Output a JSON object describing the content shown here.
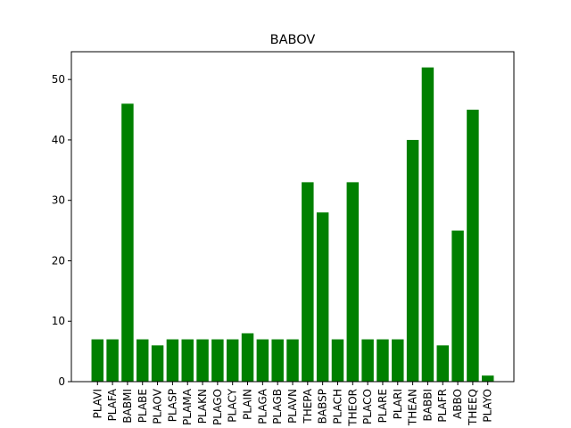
{
  "chart_data": {
    "type": "bar",
    "title": "BABOV",
    "xlabel": "",
    "ylabel": "",
    "categories": [
      "PLAVI",
      "PLAFA",
      "BABMI",
      "PLABE",
      "PLAOV",
      "PLASP",
      "PLAMA",
      "PLAKN",
      "PLAGO",
      "PLACY",
      "PLAIN",
      "PLAGA",
      "PLAGB",
      "PLAVN",
      "THEPA",
      "BABSP",
      "PLACH",
      "THEOR",
      "PLACO",
      "PLARE",
      "PLARI",
      "THEAN",
      "BABBI",
      "PLAFR",
      "ABBO",
      "THEEQ",
      "PLAYO"
    ],
    "values": [
      7,
      7,
      46,
      7,
      6,
      7,
      7,
      7,
      7,
      7,
      8,
      7,
      7,
      7,
      33,
      28,
      7,
      33,
      7,
      7,
      7,
      40,
      52,
      6,
      25,
      45,
      1
    ],
    "ylim": [
      0,
      54.6
    ],
    "yticks": [
      0,
      10,
      20,
      30,
      40,
      50
    ],
    "grid": false,
    "colors": {
      "bar": "#008000",
      "axis": "#000000"
    }
  }
}
